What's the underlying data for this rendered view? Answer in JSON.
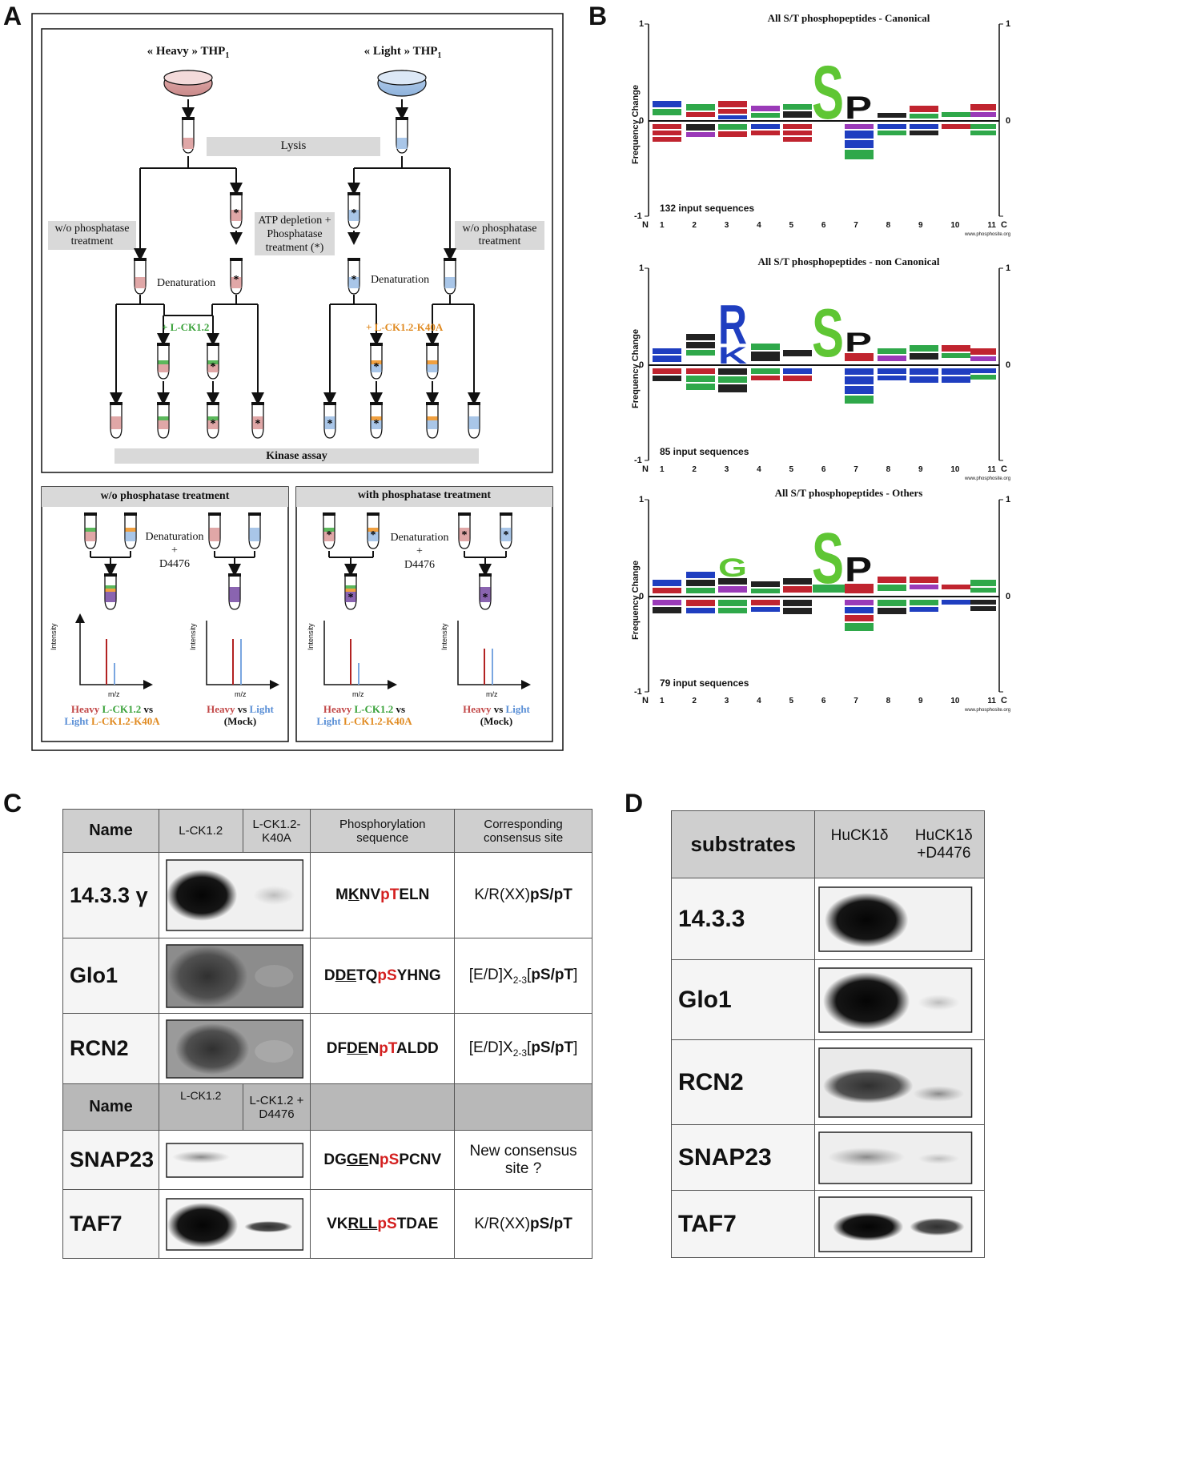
{
  "panels": {
    "A": "A",
    "B": "B",
    "C": "C",
    "D": "D"
  },
  "panelA": {
    "heavy_label": "« Heavy » THP",
    "light_label": "« Light » THP",
    "thp_sub": "1",
    "lysis": "Lysis",
    "wo_phosphatase_left": "w/o phosphatase treatment",
    "atp_depletion": "ATP depletion + Phosphatase treatment (*)",
    "wo_phosphatase_right": "w/o phosphatase treatment",
    "denaturation_left": "Denaturation",
    "denaturation_right": "Denaturation",
    "lck12": "+ L-CK1.2",
    "lck12_k40a": "+ L-CK1.2-K40A",
    "kinase_assay": "Kinase assay",
    "box1_title": "w/o phosphatase treatment",
    "box2_title": "with phosphatase treatment",
    "denat_d4476_1": "Denaturation",
    "plus": "+",
    "d4476": "D4476",
    "intensity": "Intensity",
    "mz": "m/z",
    "heavy": "Heavy",
    "light": "Light",
    "vs": "vs",
    "lck12_word": "L-CK1.2",
    "lck12_k40a_word": "L-CK1.2-K40A",
    "mock": "(Mock)"
  },
  "panelB": {
    "logos": [
      {
        "title": "All S/T phosphopeptides - Canonical",
        "count": "132 input sequences"
      },
      {
        "title": "All S/T phosphopeptides - non Canonical",
        "count": "85 input sequences"
      },
      {
        "title": "All S/T phosphopeptides - Others",
        "count": "79 input sequences"
      }
    ],
    "ylabel": "Frequency Change",
    "y_top": "1",
    "y_zero": "0",
    "y_bottom": "-1",
    "x_N": "N",
    "x_C": "C",
    "x_ticks": [
      "1",
      "2",
      "3",
      "4",
      "5",
      "6",
      "7",
      "8",
      "9",
      "10",
      "11"
    ],
    "watermark": "www.phosphosite.org"
  },
  "panelC": {
    "header1": {
      "name": "Name",
      "lck": "L-CK1.2",
      "k40a": "L-CK1.2-K40A",
      "seq": "Phosphorylation sequence",
      "cons": "Corresponding consensus site"
    },
    "header2": {
      "name": "Name",
      "lck": "L-CK1.2",
      "d4476": "L-CK1.2 + D4476"
    },
    "rows": [
      {
        "name": "14.3.3 γ",
        "seq": [
          "M",
          "K",
          "NV",
          "pT",
          "ELN"
        ],
        "cons": "K/R(XX)pS/pT"
      },
      {
        "name": "Glo1",
        "seq": [
          "D",
          "DE",
          "TQ",
          "pS",
          "YHNG"
        ],
        "cons": "[E/D]X2-3[pS/pT]"
      },
      {
        "name": "RCN2",
        "seq": [
          "DF",
          "DE",
          "N",
          "pT",
          "ALDD"
        ],
        "cons": "[E/D]X2-3[pS/pT]"
      },
      {
        "name": "SNAP23",
        "seq": [
          "DG",
          "GE",
          "N",
          "pS",
          "PCNV"
        ],
        "cons": "New consensus site ?"
      },
      {
        "name": "TAF7",
        "seq": [
          "VK",
          "RLL",
          "",
          "pS",
          "TDAE"
        ],
        "cons": "K/R(XX)pS/pT"
      }
    ]
  },
  "panelD": {
    "header": {
      "substrates": "substrates",
      "hu": "HuCK1δ",
      "hu_d": "HuCK1δ +D4476"
    },
    "rows": [
      "14.3.3",
      "Glo1",
      "RCN2",
      "SNAP23",
      "TAF7"
    ]
  }
}
